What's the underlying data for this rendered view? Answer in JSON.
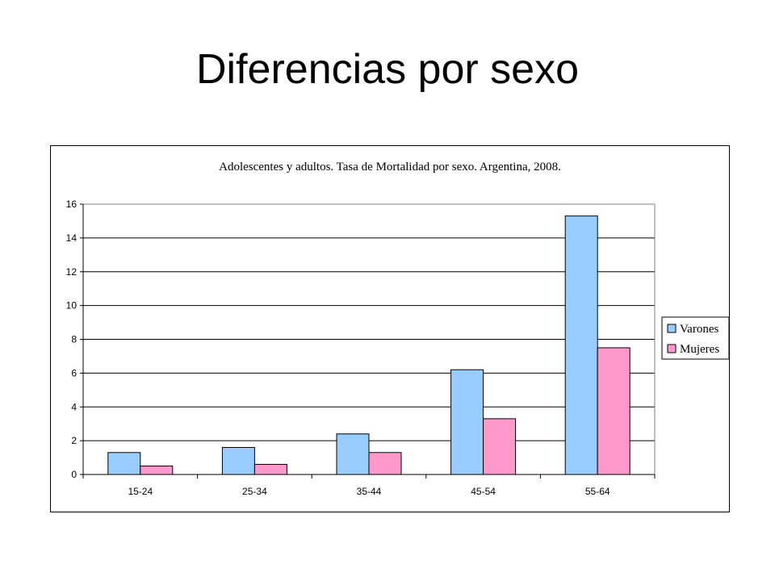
{
  "slide": {
    "title": "Diferencias por sexo"
  },
  "chart_data": {
    "type": "bar",
    "title": "Adolescentes y adultos. Tasa de Mortalidad por sexo. Argentina, 2008.",
    "xlabel": "",
    "ylabel": "",
    "categories": [
      "15-24",
      "25-34",
      "35-44",
      "45-54",
      "55-64"
    ],
    "series": [
      {
        "name": "Varones",
        "color": "#99ccff",
        "values": [
          1.3,
          1.6,
          2.4,
          6.2,
          15.3
        ]
      },
      {
        "name": "Mujeres",
        "color": "#ff99cc",
        "values": [
          0.5,
          0.6,
          1.3,
          3.3,
          7.5
        ]
      }
    ],
    "ylim": [
      0,
      16
    ],
    "yticks": [
      0,
      2,
      4,
      6,
      8,
      10,
      12,
      14,
      16
    ],
    "grid": true,
    "legend_position": "right"
  }
}
